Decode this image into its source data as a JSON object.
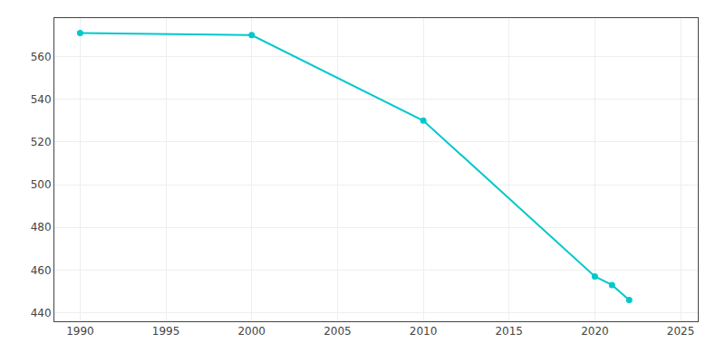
{
  "chart_data": {
    "type": "line",
    "x": [
      1990,
      2000,
      2010,
      2020,
      2021,
      2022
    ],
    "values": [
      571,
      570,
      530,
      457,
      453,
      446
    ],
    "color": "#00c8cc",
    "marker": "circle",
    "xlim": [
      1988.5,
      2026
    ],
    "ylim": [
      436,
      578
    ],
    "xticks": [
      1990,
      1995,
      2000,
      2005,
      2010,
      2015,
      2020,
      2025
    ],
    "yticks": [
      440,
      460,
      480,
      500,
      520,
      540,
      560
    ],
    "grid": true
  }
}
